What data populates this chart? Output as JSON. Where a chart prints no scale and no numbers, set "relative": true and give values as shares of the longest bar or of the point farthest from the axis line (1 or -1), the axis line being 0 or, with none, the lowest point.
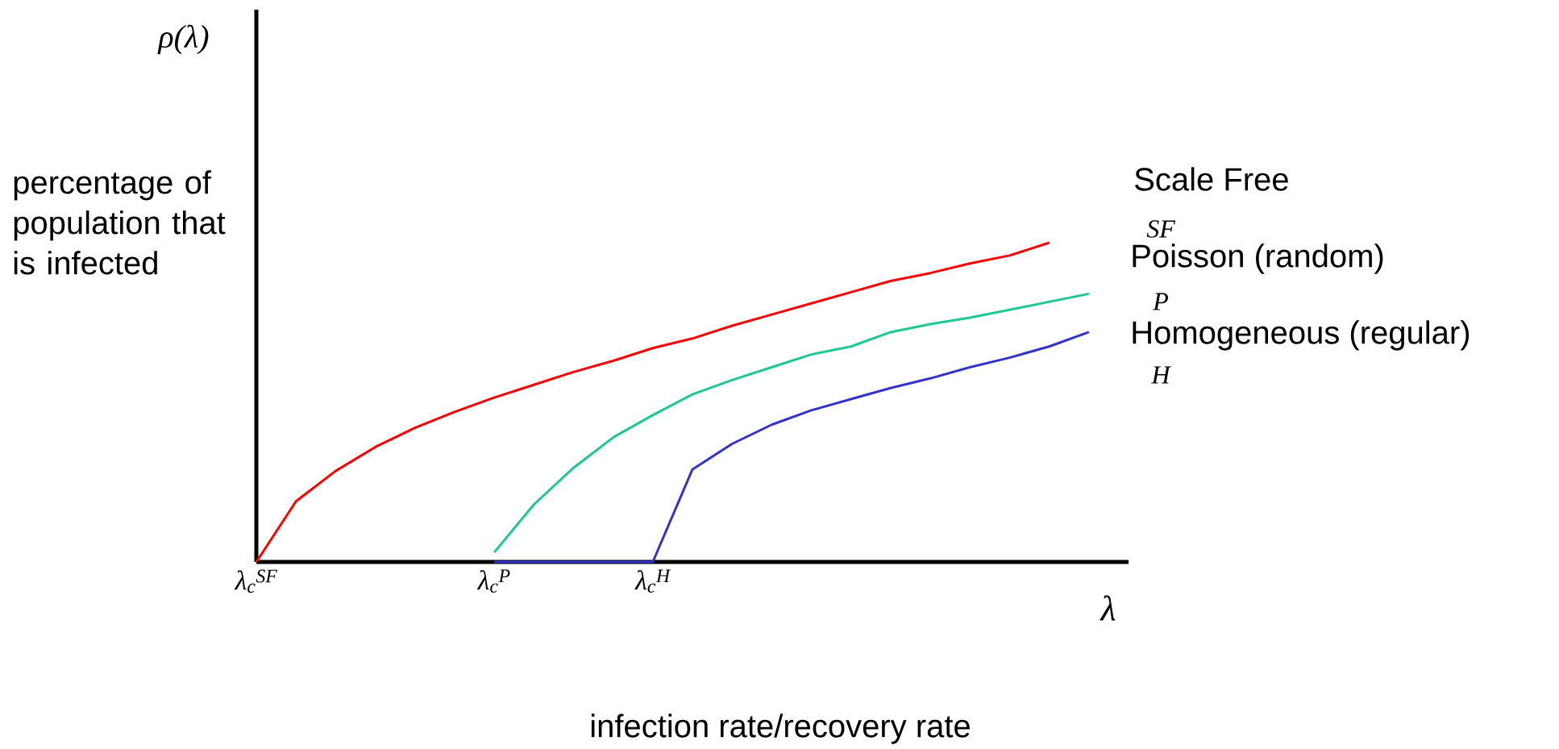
{
  "chart_data": {
    "type": "line",
    "relative": true,
    "ylabel": "percentage of population that is infected",
    "xlabel": "infection rate/recovery rate",
    "annotations": [
      "ρ(λ)",
      "λ",
      "SF",
      "P",
      "H"
    ],
    "tick_labels": "x",
    "categories": [
      "λ$_{c}$$^{SF}$",
      null,
      null,
      null,
      null,
      null,
      "λ$_{c}$$^{P}$",
      null,
      null,
      null,
      "λ$_{c}$$^{H}$",
      null,
      null,
      null,
      null,
      null,
      null,
      null,
      null,
      null,
      null,
      null,
      null
    ],
    "series": [
      {
        "name": "Scale Free",
        "color": "#ff0000",
        "values": [
          0,
          0.19,
          0.285,
          0.36,
          0.42,
          0.47,
          0.515,
          0.555,
          0.595,
          0.63,
          0.67,
          0.7,
          0.74,
          0.775,
          0.81,
          0.845,
          0.88,
          0.905,
          0.935,
          0.96,
          1.0,
          null,
          null
        ]
      },
      {
        "name": "Poisson (random)",
        "color": "#1ec98f",
        "values": [
          null,
          null,
          null,
          null,
          null,
          null,
          0.03,
          0.18,
          0.295,
          0.39,
          0.46,
          0.525,
          0.57,
          0.61,
          0.65,
          0.675,
          0.72,
          0.745,
          0.765,
          0.79,
          0.815,
          0.84,
          null
        ]
      },
      {
        "name": "Homogeneous (regular)",
        "color": "#3333cc",
        "values": [
          null,
          null,
          null,
          null,
          null,
          null,
          0,
          0,
          0,
          0,
          0,
          0.29,
          0.37,
          0.43,
          0.475,
          0.51,
          0.545,
          0.575,
          0.61,
          0.64,
          0.675,
          0.72,
          null
        ]
      }
    ]
  }
}
